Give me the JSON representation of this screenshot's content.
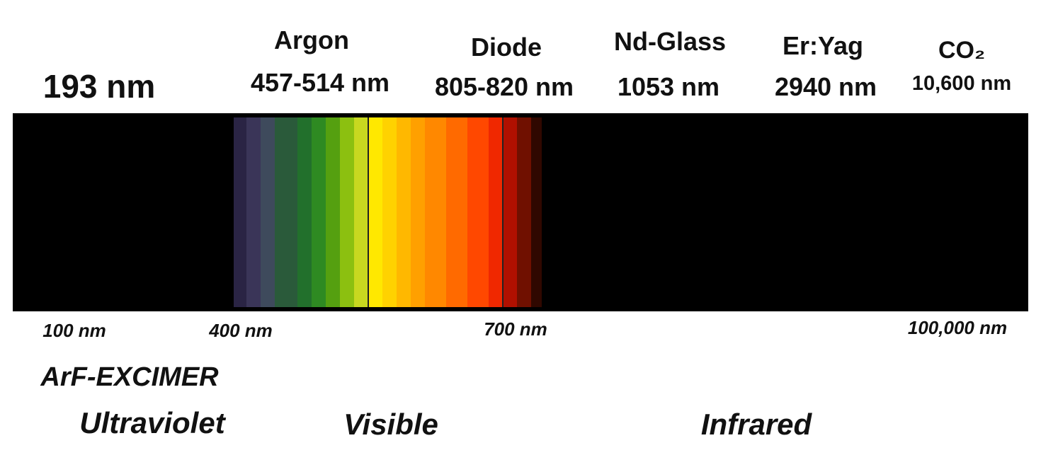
{
  "lasers": [
    {
      "label": "193 nm"
    },
    {
      "name": "Argon",
      "wavelength": "457-514 nm"
    },
    {
      "name": "Diode",
      "wavelength": "805-820 nm"
    },
    {
      "name": "Nd-Glass",
      "wavelength": "1053 nm"
    },
    {
      "name": "Er:Yag",
      "wavelength": "2940 nm"
    },
    {
      "name": "CO₂",
      "wavelength": "10,600 nm"
    }
  ],
  "scale": [
    "100 nm",
    "400 nm",
    "700 nm",
    "100,000 nm"
  ],
  "excimer": "ArF-EXCIMER",
  "regions": [
    "Ultraviolet",
    "Visible",
    "Infrared"
  ]
}
